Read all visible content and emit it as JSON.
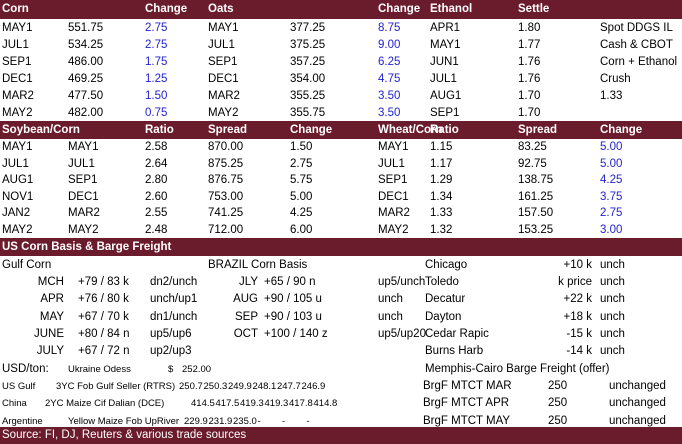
{
  "grains": {
    "header": [
      "Corn",
      "Change",
      "Oats",
      "Change",
      "Ethanol",
      "Settle"
    ],
    "rows": [
      [
        "MAY1",
        "551.75",
        "2.75",
        "MAY1",
        "377.25",
        "8.75",
        "APR1",
        "1.80",
        "Spot DDGS IL"
      ],
      [
        "JUL1",
        "534.25",
        "2.75",
        "JUL1",
        "375.25",
        "9.00",
        "MAY1",
        "1.77",
        "Cash & CBOT"
      ],
      [
        "SEP1",
        "486.00",
        "1.75",
        "SEP1",
        "357.25",
        "6.25",
        "JUN1",
        "1.76",
        "Corn + Ethanol"
      ],
      [
        "DEC1",
        "469.25",
        "1.25",
        "DEC1",
        "354.00",
        "4.75",
        "JUL1",
        "1.76",
        "Crush"
      ],
      [
        "MAR2",
        "477.50",
        "1.50",
        "MAR2",
        "355.25",
        "3.50",
        "AUG1",
        "1.70",
        "1.33"
      ],
      [
        "MAY2",
        "482.00",
        "0.75",
        "MAY2",
        "355.75",
        "3.50",
        "SEP1",
        "1.70"
      ]
    ]
  },
  "spreads": {
    "header": [
      "Soybean/Corn",
      "Ratio",
      "Spread",
      "Change",
      "Wheat/Corn",
      "Ratio",
      "Spread",
      "Change"
    ],
    "rows": [
      [
        "MAY1",
        "MAY1",
        "2.58",
        "870.00",
        "1.50",
        "MAY1",
        "1.15",
        "83.25",
        "5.00"
      ],
      [
        "JUL1",
        "JUL1",
        "2.64",
        "875.25",
        "2.75",
        "JUL1",
        "1.17",
        "92.75",
        "5.00"
      ],
      [
        "AUG1",
        "SEP1",
        "2.80",
        "876.75",
        "5.75",
        "SEP1",
        "1.29",
        "138.75",
        "4.25"
      ],
      [
        "NOV1",
        "DEC1",
        "2.60",
        "753.00",
        "5.00",
        "DEC1",
        "1.34",
        "161.25",
        "3.75"
      ],
      [
        "JAN2",
        "MAR2",
        "2.55",
        "741.25",
        "4.25",
        "MAR2",
        "1.33",
        "157.50",
        "2.75"
      ],
      [
        "MAY2",
        "MAY2",
        "2.48",
        "712.00",
        "6.00",
        "MAY2",
        "1.32",
        "153.25",
        "3.00"
      ]
    ]
  },
  "basis": {
    "title": "US Corn Basis & Barge Freight",
    "gulf_title": "Gulf Corn",
    "brazil_title": "BRAZIL Corn Basis",
    "gulf": [
      {
        "month": "MCH",
        "basis": "+79 / 83 k",
        "change": "dn2/unch"
      },
      {
        "month": "APR",
        "basis": "+76 / 80 k",
        "change": "unch/up1"
      },
      {
        "month": "MAY",
        "basis": "+67 / 70 k",
        "change": "dn1/unch"
      },
      {
        "month": "JUNE",
        "basis": "+80 / 84 n",
        "change": "up5/up6"
      },
      {
        "month": "JULY",
        "basis": "+67 / 72 n",
        "change": "up2/up3"
      }
    ],
    "brazil": [
      {
        "month": "JLY",
        "basis": "+65 / 90 n",
        "change": "up5/unch"
      },
      {
        "month": "AUG",
        "basis": "+90 / 105 u",
        "change": "unch"
      },
      {
        "month": "SEP",
        "basis": "+90 / 103 u",
        "change": "unch"
      },
      {
        "month": "OCT",
        "basis": "+100 / 140 z",
        "change": "up5/up20"
      }
    ],
    "interior": [
      {
        "location": "Chicago",
        "basis": "+10 k",
        "change": "unch"
      },
      {
        "location": "Toledo",
        "basis": "k price",
        "change": "unch"
      },
      {
        "location": "Decatur",
        "basis": "+22 k",
        "change": "unch"
      },
      {
        "location": "Dayton",
        "basis": "+18 k",
        "change": "unch"
      },
      {
        "location": "Cedar Rapic",
        "basis": "-15 k",
        "change": "unch"
      },
      {
        "location": "Burns Harb",
        "basis": "-14 k",
        "change": "unch"
      }
    ]
  },
  "usd": {
    "label": "USD/ton:",
    "origin": "Ukraine Odess",
    "currency": "$",
    "price": "252.00"
  },
  "barge_title": "Memphis-Cairo Barge Freight (offer)",
  "fob": [
    {
      "country": "US Gulf",
      "product": "3YC Fob Gulf Seller (RTRS)",
      "prices": [
        "250.7",
        "250.3",
        "249.9",
        "248.1",
        "247.7",
        "246.9"
      ]
    },
    {
      "country": "China",
      "product": "2YC Maize Cif Dalian (DCE)",
      "prices": [
        "414.5",
        "417.5",
        "419.3",
        "419.3",
        "417.8",
        "414.8"
      ]
    },
    {
      "country": "Argentine",
      "product": "Yellow Maize Fob UpRiver",
      "prices": [
        "229.9",
        "231.9",
        "235.0",
        "-",
        "-",
        "-"
      ]
    }
  ],
  "barge": [
    {
      "name": "BrgF MTCT MAR",
      "value": "250",
      "status": "unchanged"
    },
    {
      "name": "BrgF MTCT APR",
      "value": "250",
      "status": "unchanged"
    },
    {
      "name": "BrgF MTCT MAY",
      "value": "250",
      "status": "unchanged"
    }
  ],
  "footer": "Source: FI, DJ, Reuters & various trade sources"
}
